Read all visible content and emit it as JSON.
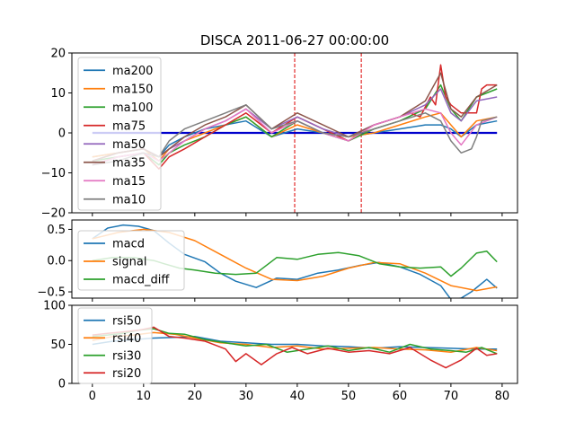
{
  "chart_data": [
    {
      "type": "line",
      "title": "DISCA 2011-06-27 00:00:00",
      "xlim": [
        -4,
        83
      ],
      "ylim": [
        -20,
        20
      ],
      "yticks": [
        -20,
        -10,
        0,
        10,
        20
      ],
      "xticks": [
        0,
        10,
        20,
        30,
        40,
        50,
        60,
        70,
        80
      ],
      "legend_position": "upper-left",
      "vlines": [
        {
          "x": 39.5,
          "color": "#dd0000"
        },
        {
          "x": 52.5,
          "color": "#dd0000"
        }
      ],
      "hlines": [
        {
          "y": 0,
          "x0": 0,
          "x1": 79,
          "color": "#0000cc"
        }
      ],
      "series": [
        {
          "name": "ma200",
          "color": "#1f77b4",
          "x": [
            0,
            5,
            10,
            13,
            15,
            18,
            22,
            26,
            30,
            35,
            40,
            45,
            50,
            55,
            60,
            65,
            68,
            70,
            72,
            75,
            79
          ],
          "y": [
            -6,
            -5,
            -4,
            -6,
            -3,
            -1,
            1,
            2,
            3,
            -1,
            1,
            0,
            -1,
            0,
            1,
            2,
            2,
            1,
            -1,
            2,
            3
          ]
        },
        {
          "name": "ma150",
          "color": "#ff7f0e",
          "x": [
            0,
            5,
            10,
            13,
            15,
            18,
            22,
            26,
            30,
            35,
            40,
            45,
            50,
            55,
            60,
            65,
            68,
            70,
            72,
            75,
            79
          ],
          "y": [
            -6,
            -5,
            -4,
            -7,
            -4,
            -2,
            0,
            2,
            4,
            -1,
            2,
            0,
            -1,
            0,
            2,
            4,
            5,
            2,
            -1,
            3,
            4
          ]
        },
        {
          "name": "ma100",
          "color": "#2ca02c",
          "x": [
            0,
            5,
            10,
            13,
            15,
            18,
            22,
            26,
            30,
            35,
            40,
            45,
            50,
            55,
            60,
            65,
            68,
            70,
            72,
            75,
            79
          ],
          "y": [
            -7,
            -6,
            -5,
            -8,
            -5,
            -3,
            -1,
            2,
            4,
            -1,
            3,
            0,
            -2,
            1,
            3,
            6,
            12,
            6,
            3,
            9,
            11
          ]
        },
        {
          "name": "ma75",
          "color": "#d62728",
          "x": [
            0,
            5,
            10,
            13,
            15,
            18,
            22,
            26,
            30,
            35,
            40,
            45,
            50,
            55,
            60,
            62,
            64,
            66,
            67,
            68,
            69,
            70,
            72,
            75,
            76,
            77,
            79
          ],
          "y": [
            -8,
            -6,
            -5,
            -9,
            -6,
            -4,
            -1,
            2,
            5,
            0,
            4,
            1,
            -2,
            2,
            4,
            5,
            4,
            9,
            7,
            17,
            9,
            7,
            5,
            5,
            11,
            12,
            12
          ]
        },
        {
          "name": "ma50",
          "color": "#9467bd",
          "x": [
            0,
            5,
            10,
            13,
            15,
            18,
            22,
            26,
            30,
            35,
            40,
            45,
            50,
            55,
            60,
            65,
            68,
            70,
            72,
            75,
            79
          ],
          "y": [
            -7,
            -5,
            -4,
            -6,
            -4,
            -2,
            1,
            3,
            6,
            1,
            4,
            1,
            -1,
            2,
            4,
            7,
            11,
            5,
            3,
            8,
            9
          ]
        },
        {
          "name": "ma35",
          "color": "#8c564b",
          "x": [
            0,
            5,
            10,
            13,
            15,
            18,
            22,
            26,
            30,
            35,
            40,
            45,
            50,
            55,
            60,
            65,
            68,
            70,
            72,
            75,
            79
          ],
          "y": [
            -7,
            -5,
            -4,
            -6,
            -4,
            -1,
            2,
            4,
            7,
            1,
            5,
            2,
            -1,
            2,
            4,
            8,
            15,
            6,
            4,
            9,
            12
          ]
        },
        {
          "name": "ma15",
          "color": "#e377c2",
          "x": [
            0,
            5,
            10,
            13,
            15,
            18,
            22,
            26,
            30,
            35,
            40,
            45,
            50,
            55,
            60,
            65,
            68,
            70,
            72,
            75,
            79
          ],
          "y": [
            -8,
            -6,
            -5,
            -7,
            -5,
            -2,
            1,
            3,
            6,
            0,
            3,
            0,
            -2,
            2,
            4,
            6,
            5,
            0,
            -3,
            2,
            4
          ]
        },
        {
          "name": "ma10",
          "color": "#7f7f7f",
          "x": [
            0,
            5,
            10,
            13,
            15,
            18,
            22,
            26,
            30,
            35,
            40,
            45,
            50,
            55,
            60,
            65,
            68,
            70,
            72,
            74,
            75,
            76,
            79
          ],
          "y": [
            -8,
            -7,
            -5,
            -6,
            -2,
            1,
            3,
            5,
            7,
            1,
            3,
            0,
            -1,
            1,
            3,
            5,
            3,
            -2,
            -5,
            -4,
            -1,
            3,
            4
          ]
        }
      ]
    },
    {
      "type": "line",
      "xlim": [
        -4,
        83
      ],
      "ylim": [
        -0.6,
        0.65
      ],
      "yticks": [
        -0.5,
        0.0,
        0.5
      ],
      "ytick_labels": [
        "−0.5",
        "0.0",
        "0.5"
      ],
      "xticks": [
        0,
        10,
        20,
        30,
        40,
        50,
        60,
        70,
        80
      ],
      "legend_position": "lower-left",
      "series": [
        {
          "name": "macd",
          "color": "#1f77b4",
          "x": [
            0,
            3,
            6,
            9,
            12,
            15,
            18,
            22,
            25,
            28,
            32,
            36,
            40,
            44,
            48,
            52,
            56,
            60,
            64,
            68,
            70,
            72,
            74,
            77,
            79
          ],
          "y": [
            0.35,
            0.52,
            0.57,
            0.55,
            0.48,
            0.28,
            0.1,
            -0.02,
            -0.2,
            -0.33,
            -0.43,
            -0.28,
            -0.3,
            -0.2,
            -0.15,
            -0.08,
            -0.03,
            -0.1,
            -0.22,
            -0.4,
            -0.62,
            -0.6,
            -0.5,
            -0.3,
            -0.44
          ]
        },
        {
          "name": "signal",
          "color": "#ff7f0e",
          "x": [
            0,
            5,
            10,
            15,
            20,
            25,
            30,
            35,
            40,
            45,
            50,
            55,
            60,
            65,
            70,
            75,
            79
          ],
          "y": [
            0.35,
            0.45,
            0.5,
            0.45,
            0.32,
            0.1,
            -0.12,
            -0.3,
            -0.32,
            -0.25,
            -0.12,
            -0.03,
            -0.05,
            -0.2,
            -0.4,
            -0.48,
            -0.42
          ]
        },
        {
          "name": "macd_diff",
          "color": "#2ca02c",
          "x": [
            0,
            4,
            8,
            12,
            14,
            17,
            20,
            24,
            28,
            32,
            36,
            40,
            44,
            48,
            52,
            56,
            60,
            64,
            68,
            70,
            72,
            75,
            77,
            79
          ],
          "y": [
            0.0,
            0.05,
            0.05,
            0.0,
            -0.05,
            -0.12,
            -0.15,
            -0.2,
            -0.22,
            -0.2,
            0.05,
            0.02,
            0.1,
            0.13,
            0.08,
            -0.05,
            -0.1,
            -0.12,
            -0.1,
            -0.25,
            -0.12,
            0.12,
            0.15,
            -0.02
          ]
        }
      ]
    },
    {
      "type": "line",
      "xlim": [
        -4,
        83
      ],
      "ylim": [
        0,
        100
      ],
      "yticks": [
        0,
        50,
        100
      ],
      "xticks": [
        0,
        10,
        20,
        30,
        40,
        50,
        60,
        70,
        80
      ],
      "legend_position": "upper-left",
      "series": [
        {
          "name": "rsi50",
          "color": "#1f77b4",
          "x": [
            0,
            4,
            8,
            12,
            16,
            20,
            25,
            30,
            35,
            40,
            45,
            50,
            55,
            60,
            65,
            70,
            75,
            79
          ],
          "y": [
            50,
            54,
            56,
            58,
            59,
            60,
            54,
            52,
            50,
            50,
            48,
            47,
            45,
            47,
            46,
            45,
            44,
            44
          ]
        },
        {
          "name": "rsi40",
          "color": "#ff7f0e",
          "x": [
            0,
            4,
            8,
            12,
            16,
            20,
            25,
            30,
            35,
            40,
            45,
            50,
            55,
            60,
            65,
            70,
            75,
            79
          ],
          "y": [
            55,
            60,
            62,
            65,
            63,
            58,
            52,
            50,
            46,
            48,
            44,
            45,
            46,
            44,
            43,
            40,
            46,
            42
          ]
        },
        {
          "name": "rsi30",
          "color": "#2ca02c",
          "x": [
            0,
            3,
            6,
            9,
            12,
            15,
            18,
            22,
            26,
            30,
            34,
            38,
            42,
            46,
            50,
            54,
            58,
            62,
            66,
            70,
            73,
            76,
            79
          ],
          "y": [
            60,
            62,
            64,
            68,
            70,
            64,
            63,
            56,
            52,
            48,
            50,
            40,
            44,
            48,
            42,
            46,
            40,
            50,
            44,
            42,
            40,
            46,
            38
          ]
        },
        {
          "name": "rsi20",
          "color": "#d62728",
          "x": [
            0,
            3,
            6,
            9,
            12,
            15,
            18,
            22,
            26,
            28,
            30,
            33,
            36,
            39,
            42,
            46,
            50,
            54,
            58,
            62,
            66,
            69,
            72,
            75,
            77,
            79
          ],
          "y": [
            62,
            64,
            66,
            68,
            72,
            60,
            58,
            54,
            44,
            28,
            38,
            24,
            38,
            46,
            38,
            45,
            40,
            42,
            38,
            46,
            30,
            20,
            30,
            45,
            36,
            38
          ]
        }
      ]
    }
  ]
}
